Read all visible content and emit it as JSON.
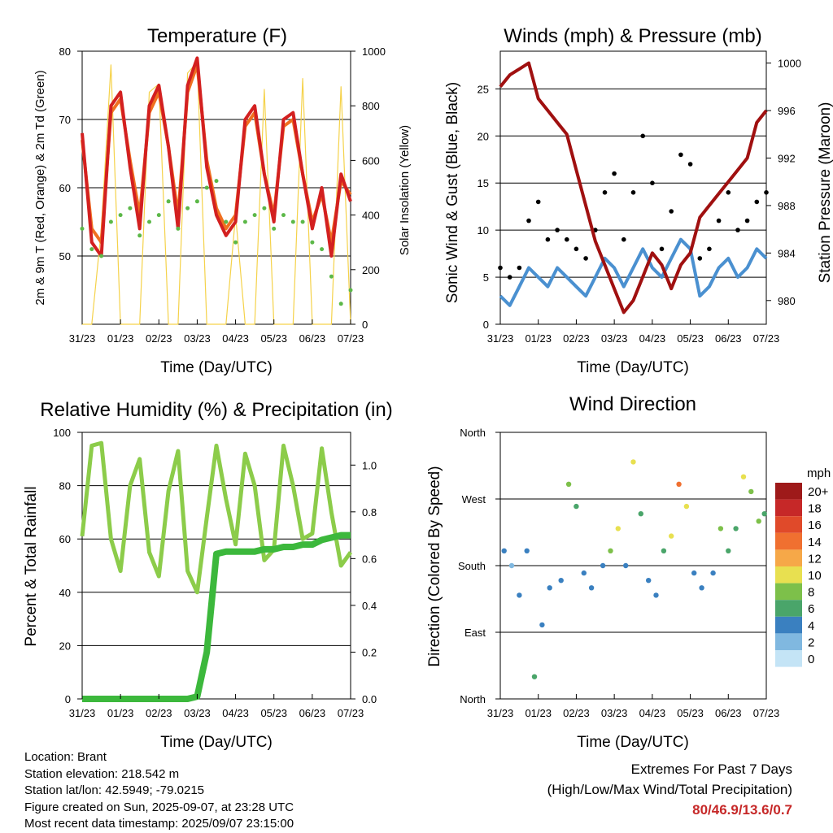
{
  "x_tick_labels": [
    "31/23",
    "01/23",
    "02/23",
    "03/23",
    "04/23",
    "05/23",
    "06/23",
    "07/23"
  ],
  "xlabel": "Time (Day/UTC)",
  "temperature": {
    "title": "Temperature (F)",
    "ylabel_left": "2m & 9m T (Red, Orange) & 2m Td (Green)",
    "ylabel_right": "Solar Insolation (Yellow)",
    "left_ticks": [
      "80",
      "70",
      "60",
      "50"
    ],
    "right_ticks": [
      "1000",
      "800",
      "600",
      "400",
      "200",
      "0"
    ]
  },
  "winds": {
    "title": "Winds (mph) & Pressure (mb)",
    "ylabel_left": "Sonic Wind & Gust (Blue, Black)",
    "ylabel_right": "Station Pressure (Maroon)",
    "left_ticks": [
      "25",
      "20",
      "15",
      "10",
      "5",
      "0"
    ],
    "right_ticks": [
      "1000",
      "996",
      "992",
      "988",
      "984",
      "980"
    ]
  },
  "humidity": {
    "title": "Relative Humidity (%) & Precipitation (in)",
    "ylabel_left": "Percent & Total Rainfall",
    "left_ticks": [
      "100",
      "80",
      "60",
      "40",
      "20",
      "0"
    ],
    "right_ticks": [
      "1.0",
      "0.8",
      "0.6",
      "0.4",
      "0.2",
      "0.0"
    ]
  },
  "direction": {
    "title": "Wind Direction",
    "ylabel_left": "Direction (Colored By Speed)",
    "dir_ticks": [
      "North",
      "West",
      "South",
      "East",
      "North"
    ],
    "legend_title": "mph",
    "legend_labels": [
      "20+",
      "18",
      "16",
      "14",
      "12",
      "10",
      "8",
      "6",
      "4",
      "2",
      "0"
    ],
    "legend_colors": [
      "#9e1a1a",
      "#c62828",
      "#e04a2a",
      "#f07030",
      "#f6a848",
      "#e8e050",
      "#7dc04a",
      "#4aa56a",
      "#3a80c0",
      "#80b8e0",
      "#c4e4f6"
    ]
  },
  "info": {
    "location": "Location: Brant",
    "elevation": "Station elevation: 218.542 m",
    "latlon": "Station lat/lon: 42.5949; -79.0215",
    "created": "Figure created on Sun, 2025-09-07, at 23:28 UTC",
    "recent": "Most recent data timestamp: 2025/09/07 23:15:00"
  },
  "extremes": {
    "title": "Extremes For Past 7 Days",
    "subtitle": "(High/Low/Max Wind/Total Precipitation)",
    "values": "80/46.9/13.6/0.7"
  },
  "chart_data": [
    {
      "type": "line",
      "title": "Temperature (F)",
      "xlabel": "Time (Day/UTC)",
      "ylabel": "2m & 9m T (Red, Orange) & 2m Td (Green)",
      "y2label": "Solar Insolation (Yellow)",
      "x": [
        0,
        0.25,
        0.5,
        0.75,
        1,
        1.25,
        1.5,
        1.75,
        2,
        2.25,
        2.5,
        2.75,
        3,
        3.25,
        3.5,
        3.75,
        4,
        4.25,
        4.5,
        4.75,
        5,
        5.25,
        5.5,
        5.75,
        6,
        6.25,
        6.5,
        6.75,
        7
      ],
      "ylim": [
        40,
        80
      ],
      "y2lim": [
        0,
        1000
      ],
      "series": [
        {
          "name": "2m T (Red)",
          "color": "#d32020",
          "values": [
            68,
            52,
            50,
            72,
            74,
            63,
            54,
            72,
            75,
            66,
            54,
            75,
            79,
            63,
            56,
            53,
            55,
            70,
            72,
            62,
            55,
            70,
            71,
            62,
            54,
            60,
            50,
            62,
            58
          ]
        },
        {
          "name": "9m T (Orange)",
          "color": "#f07020",
          "values": [
            67,
            54,
            52,
            71,
            73,
            64,
            56,
            71,
            74,
            66,
            56,
            74,
            78,
            64,
            57,
            54,
            56,
            69,
            71,
            62,
            56,
            69,
            70,
            62,
            55,
            59,
            52,
            61,
            59
          ]
        },
        {
          "name": "2m Td (Green)",
          "color": "#5cb848",
          "values": [
            54,
            51,
            50,
            55,
            56,
            57,
            53,
            55,
            56,
            58,
            54,
            57,
            58,
            60,
            61,
            55,
            52,
            55,
            56,
            57,
            54,
            56,
            55,
            55,
            52,
            51,
            47,
            43,
            45
          ]
        },
        {
          "name": "Solar Insolation (Yellow)",
          "color": "#f5d24a",
          "axis": "right",
          "values": [
            0,
            0,
            350,
            950,
            0,
            0,
            0,
            850,
            880,
            0,
            0,
            920,
            960,
            0,
            0,
            0,
            400,
            0,
            0,
            860,
            0,
            0,
            0,
            900,
            0,
            0,
            0,
            870,
            0
          ]
        }
      ]
    },
    {
      "type": "line",
      "title": "Winds (mph) & Pressure (mb)",
      "xlabel": "Time (Day/UTC)",
      "ylabel": "Sonic Wind & Gust (Blue, Black)",
      "y2label": "Station Pressure (Maroon)",
      "x": [
        0,
        0.25,
        0.5,
        0.75,
        1,
        1.25,
        1.5,
        1.75,
        2,
        2.25,
        2.5,
        2.75,
        3,
        3.25,
        3.5,
        3.75,
        4,
        4.25,
        4.5,
        4.75,
        5,
        5.25,
        5.5,
        5.75,
        6,
        6.25,
        6.5,
        6.75,
        7
      ],
      "ylim": [
        0,
        29
      ],
      "y2lim": [
        978,
        1001
      ],
      "series": [
        {
          "name": "Sonic Wind (Blue)",
          "color": "#4a90d0",
          "values": [
            3,
            2,
            4,
            6,
            5,
            4,
            6,
            5,
            4,
            3,
            5,
            7,
            6,
            4,
            6,
            8,
            6,
            5,
            7,
            9,
            8,
            3,
            4,
            6,
            7,
            5,
            6,
            8,
            7
          ]
        },
        {
          "name": "Gust (Black)",
          "color": "#000000",
          "values": [
            6,
            5,
            6,
            11,
            13,
            9,
            10,
            9,
            8,
            7,
            10,
            14,
            16,
            9,
            14,
            20,
            15,
            8,
            12,
            18,
            17,
            7,
            8,
            11,
            14,
            10,
            11,
            13,
            14
          ]
        },
        {
          "name": "Station Pressure (Maroon)",
          "color": "#a01010",
          "axis": "right",
          "values": [
            998,
            999,
            999.5,
            1000,
            997,
            996,
            995,
            994,
            991,
            988,
            985,
            983,
            981,
            979,
            980,
            982,
            984,
            983,
            981,
            983,
            984,
            987,
            988,
            989,
            990,
            991,
            992,
            995,
            996
          ]
        }
      ]
    },
    {
      "type": "line",
      "title": "Relative Humidity (%) & Precipitation (in)",
      "xlabel": "Time (Day/UTC)",
      "ylabel": "Percent & Total Rainfall",
      "x": [
        0,
        0.25,
        0.5,
        0.75,
        1,
        1.25,
        1.5,
        1.75,
        2,
        2.25,
        2.5,
        2.75,
        3,
        3.25,
        3.5,
        3.75,
        4,
        4.25,
        4.5,
        4.75,
        5,
        5.25,
        5.5,
        5.75,
        6,
        6.25,
        6.5,
        6.75,
        7
      ],
      "ylim": [
        0,
        100
      ],
      "y2lim": [
        0,
        1.14
      ],
      "series": [
        {
          "name": "Relative Humidity",
          "color": "#8ccc4a",
          "values": [
            61,
            95,
            96,
            60,
            48,
            80,
            90,
            55,
            46,
            78,
            93,
            48,
            40,
            68,
            95,
            75,
            58,
            92,
            80,
            52,
            56,
            95,
            80,
            60,
            62,
            94,
            70,
            50,
            55
          ]
        },
        {
          "name": "Total Rainfall",
          "color": "#3cb83c",
          "axis": "right",
          "values": [
            0,
            0,
            0,
            0,
            0,
            0,
            0,
            0,
            0,
            0,
            0,
            0,
            0.01,
            0.2,
            0.62,
            0.63,
            0.63,
            0.63,
            0.63,
            0.64,
            0.64,
            0.65,
            0.65,
            0.66,
            0.66,
            0.68,
            0.69,
            0.7,
            0.7
          ]
        }
      ]
    },
    {
      "type": "scatter",
      "title": "Wind Direction",
      "xlabel": "Time (Day/UTC)",
      "ylabel": "Direction (Colored By Speed)",
      "y_categories": [
        "North",
        "West",
        "South",
        "East",
        "North"
      ],
      "ylim": [
        0,
        360
      ],
      "points": [
        [
          0.1,
          200
        ],
        [
          0.3,
          180
        ],
        [
          0.5,
          140
        ],
        [
          0.7,
          200
        ],
        [
          0.9,
          30
        ],
        [
          1.1,
          100
        ],
        [
          1.3,
          150
        ],
        [
          1.6,
          160
        ],
        [
          1.8,
          290
        ],
        [
          2.0,
          260
        ],
        [
          2.2,
          170
        ],
        [
          2.4,
          150
        ],
        [
          2.7,
          180
        ],
        [
          2.9,
          200
        ],
        [
          3.1,
          230
        ],
        [
          3.3,
          180
        ],
        [
          3.5,
          320
        ],
        [
          3.7,
          250
        ],
        [
          3.9,
          160
        ],
        [
          4.1,
          140
        ],
        [
          4.3,
          200
        ],
        [
          4.5,
          220
        ],
        [
          4.7,
          290
        ],
        [
          4.9,
          260
        ],
        [
          5.1,
          170
        ],
        [
          5.3,
          150
        ],
        [
          5.6,
          170
        ],
        [
          5.8,
          230
        ],
        [
          6.0,
          200
        ],
        [
          6.2,
          230
        ],
        [
          6.4,
          300
        ],
        [
          6.6,
          280
        ],
        [
          6.8,
          240
        ],
        [
          6.95,
          250
        ]
      ],
      "speeds": [
        3,
        2,
        3,
        4,
        6,
        3,
        4,
        3,
        7,
        6,
        3,
        3,
        4,
        8,
        9,
        4,
        10,
        6,
        4,
        3,
        5,
        9,
        13,
        10,
        3,
        3,
        4,
        7,
        5,
        6,
        9,
        8,
        7,
        6
      ]
    }
  ]
}
